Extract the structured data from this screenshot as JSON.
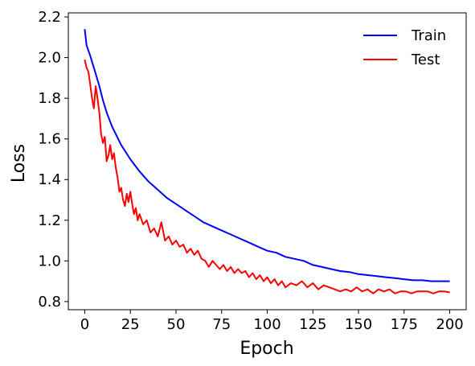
{
  "chart_data": {
    "type": "line",
    "title": "",
    "xlabel": "Epoch",
    "ylabel": "Loss",
    "xlim": [
      -9,
      209
    ],
    "ylim": [
      0.76,
      2.22
    ],
    "xticks": [
      0,
      25,
      50,
      75,
      100,
      125,
      150,
      175,
      200
    ],
    "xtick_labels": [
      "0",
      "25",
      "50",
      "75",
      "100",
      "125",
      "150",
      "175",
      "200"
    ],
    "yticks": [
      0.8,
      1.0,
      1.2,
      1.4,
      1.6,
      1.8,
      2.0,
      2.2
    ],
    "ytick_labels": [
      "0.8",
      "1.0",
      "1.2",
      "1.4",
      "1.6",
      "1.8",
      "2.0",
      "2.2"
    ],
    "grid": false,
    "legend_position": "top-right",
    "series": [
      {
        "name": "Train",
        "color": "#0000ff",
        "x": [
          0,
          1,
          3,
          5,
          8,
          10,
          12,
          15,
          20,
          25,
          30,
          35,
          40,
          45,
          50,
          55,
          60,
          65,
          70,
          75,
          80,
          85,
          90,
          95,
          100,
          105,
          110,
          115,
          120,
          125,
          130,
          135,
          140,
          145,
          150,
          155,
          160,
          165,
          170,
          175,
          180,
          185,
          190,
          195,
          200
        ],
        "values": [
          2.14,
          2.06,
          2.01,
          1.95,
          1.86,
          1.79,
          1.73,
          1.66,
          1.57,
          1.5,
          1.44,
          1.39,
          1.35,
          1.31,
          1.28,
          1.25,
          1.22,
          1.19,
          1.17,
          1.15,
          1.13,
          1.11,
          1.09,
          1.07,
          1.05,
          1.04,
          1.02,
          1.01,
          1.0,
          0.98,
          0.97,
          0.96,
          0.95,
          0.945,
          0.935,
          0.93,
          0.925,
          0.92,
          0.915,
          0.91,
          0.905,
          0.905,
          0.9,
          0.9,
          0.9
        ]
      },
      {
        "name": "Test",
        "color": "#ff0000",
        "x": [
          0,
          1,
          2,
          3,
          4,
          5,
          6,
          7,
          8,
          9,
          10,
          11,
          12,
          13,
          14,
          15,
          16,
          17,
          18,
          19,
          20,
          21,
          22,
          23,
          24,
          25,
          26,
          27,
          28,
          29,
          30,
          32,
          34,
          36,
          38,
          40,
          42,
          44,
          46,
          48,
          50,
          52,
          54,
          56,
          58,
          60,
          62,
          64,
          66,
          68,
          70,
          72,
          74,
          76,
          78,
          80,
          82,
          84,
          86,
          88,
          90,
          92,
          94,
          96,
          98,
          100,
          102,
          104,
          106,
          108,
          110,
          113,
          116,
          119,
          122,
          125,
          128,
          131,
          134,
          137,
          140,
          143,
          146,
          149,
          152,
          155,
          158,
          161,
          164,
          167,
          170,
          173,
          176,
          179,
          182,
          185,
          188,
          191,
          194,
          197,
          200
        ],
        "values": [
          1.99,
          1.95,
          1.93,
          1.87,
          1.8,
          1.75,
          1.86,
          1.8,
          1.73,
          1.62,
          1.58,
          1.61,
          1.49,
          1.52,
          1.57,
          1.5,
          1.53,
          1.46,
          1.41,
          1.34,
          1.36,
          1.3,
          1.27,
          1.33,
          1.29,
          1.34,
          1.28,
          1.23,
          1.26,
          1.2,
          1.23,
          1.18,
          1.2,
          1.14,
          1.16,
          1.12,
          1.19,
          1.1,
          1.12,
          1.08,
          1.1,
          1.07,
          1.08,
          1.04,
          1.06,
          1.03,
          1.05,
          1.01,
          1.0,
          0.97,
          1.0,
          0.98,
          0.96,
          0.98,
          0.95,
          0.97,
          0.94,
          0.96,
          0.94,
          0.95,
          0.92,
          0.94,
          0.91,
          0.93,
          0.9,
          0.92,
          0.89,
          0.91,
          0.88,
          0.9,
          0.87,
          0.89,
          0.88,
          0.9,
          0.87,
          0.89,
          0.86,
          0.88,
          0.87,
          0.86,
          0.85,
          0.86,
          0.85,
          0.87,
          0.85,
          0.86,
          0.84,
          0.86,
          0.85,
          0.86,
          0.84,
          0.85,
          0.85,
          0.84,
          0.85,
          0.85,
          0.85,
          0.84,
          0.85,
          0.85,
          0.845
        ]
      }
    ]
  }
}
